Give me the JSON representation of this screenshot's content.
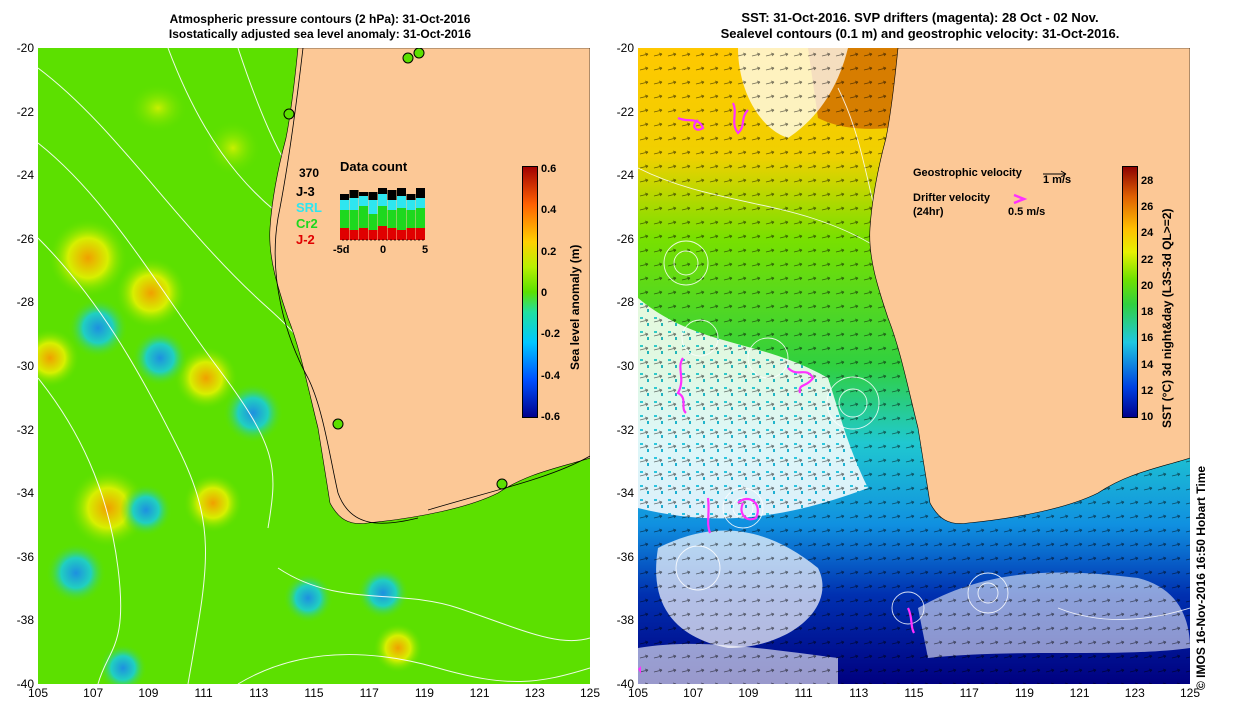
{
  "left_panel": {
    "title_line1": "Atmospheric pressure contours (2 hPa): 31-Oct-2016",
    "title_line2": "Isostatically adjusted sea level anomaly: 31-Oct-2016",
    "colorbar": {
      "label": "Sea level anomaly (m)",
      "ticks": [
        "0.6",
        "0.4",
        "0.2",
        "0",
        "-0.2",
        "-0.4",
        "-0.6"
      ],
      "range": [
        -0.6,
        0.6
      ]
    },
    "data_count": {
      "title": "Data count",
      "total": "370",
      "legend": [
        {
          "name": "J-3",
          "color": "#000000"
        },
        {
          "name": "SRL",
          "color": "#2ee6f0"
        },
        {
          "name": "Cr2",
          "color": "#1ed81e"
        },
        {
          "name": "J-2",
          "color": "#e00000"
        }
      ],
      "xticks": [
        "-5d",
        "0",
        "5"
      ]
    }
  },
  "right_panel": {
    "title_line1": "SST: 31-Oct-2016. SVP drifters (magenta): 28 Oct - 02 Nov.",
    "title_line2": "Sealevel contours (0.1 m) and geostrophic velocity: 31-Oct-2016.",
    "geostrophic_label": "Geostrophic velocity",
    "geostrophic_scale": "1 m/s",
    "drifter_label": "Drifter velocity",
    "drifter_sub": "(24hr)",
    "drifter_scale": "0.5 m/s",
    "colorbar": {
      "label": "SST (°C) 3d night&day (L3S-3d QL>=2)",
      "ticks": [
        "28",
        "26",
        "24",
        "22",
        "20",
        "18",
        "16",
        "14",
        "12",
        "10"
      ],
      "range": [
        10,
        29
      ]
    },
    "credit": "© IMOS 16-Nov-2016 16:50 Hobart Time"
  },
  "axes": {
    "y_ticks": [
      "-20",
      "-22",
      "-24",
      "-26",
      "-28",
      "-30",
      "-32",
      "-34",
      "-36",
      "-38",
      "-40"
    ],
    "x_ticks": [
      "105",
      "107",
      "109",
      "111",
      "113",
      "115",
      "117",
      "119",
      "121",
      "123",
      "125"
    ]
  },
  "colors": {
    "land": "#fcc896",
    "ocean_green": "#5ce000",
    "contour": "#ffffff",
    "drifter": "#ff30ff"
  }
}
